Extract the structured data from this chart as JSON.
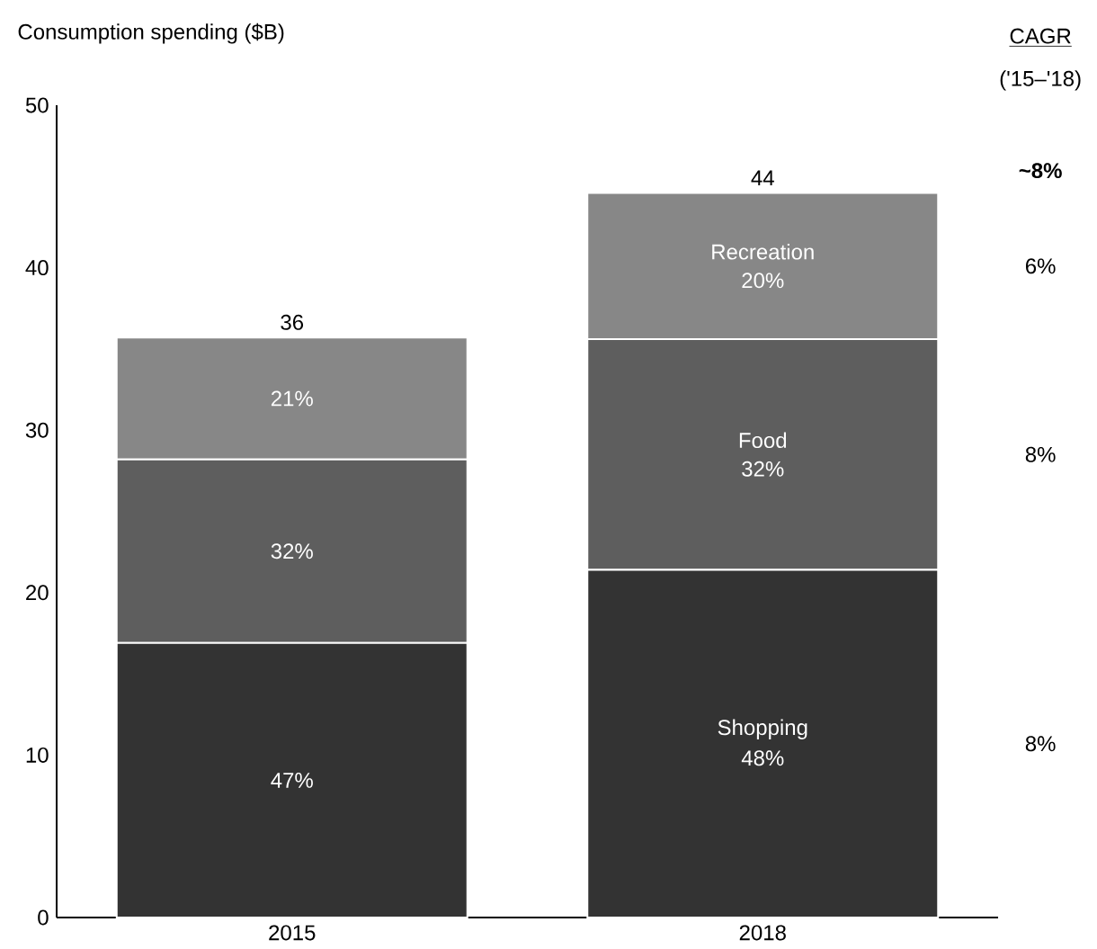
{
  "chart_data": {
    "type": "bar",
    "stacked": true,
    "ylabel": "Consumption spending ($B)",
    "categories": [
      "2015",
      "2018"
    ],
    "series": [
      {
        "name": "Shopping",
        "color": "#333333",
        "values": [
          16.9,
          21.4
        ]
      },
      {
        "name": "Food",
        "color": "#5e5e5e",
        "values": [
          11.3,
          14.2
        ]
      },
      {
        "name": "Recreation",
        "color": "#878787",
        "values": [
          7.5,
          9.0
        ]
      }
    ],
    "totals": [
      "36",
      "44"
    ],
    "ylim": [
      0,
      50
    ],
    "yticks": [
      0,
      10,
      20,
      30,
      40,
      50
    ],
    "annotations": [
      "CAGR",
      "('15–'18)",
      "**~8%**",
      "6%",
      "8%",
      "8%",
      "47%",
      "32%",
      "21%",
      "48%",
      "32%",
      "20%"
    ]
  }
}
